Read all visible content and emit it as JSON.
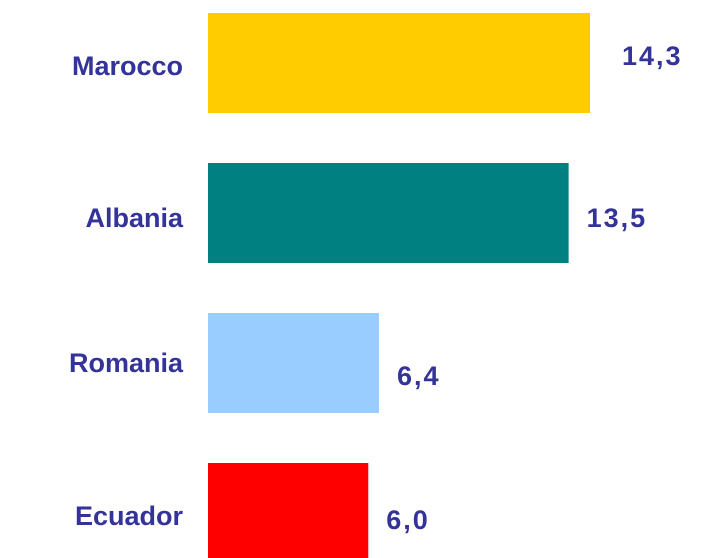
{
  "chart_data": {
    "type": "bar",
    "orientation": "horizontal",
    "categories": [
      "Marocco",
      "Albania",
      "Romania",
      "Ecuador"
    ],
    "values": [
      14.3,
      13.5,
      6.4,
      6.0
    ],
    "value_labels": [
      "14,3",
      "13,5",
      "6,4",
      "6,0"
    ],
    "colors": [
      "#ffcc00",
      "#008080",
      "#99ccff",
      "#ff0000"
    ]
  }
}
